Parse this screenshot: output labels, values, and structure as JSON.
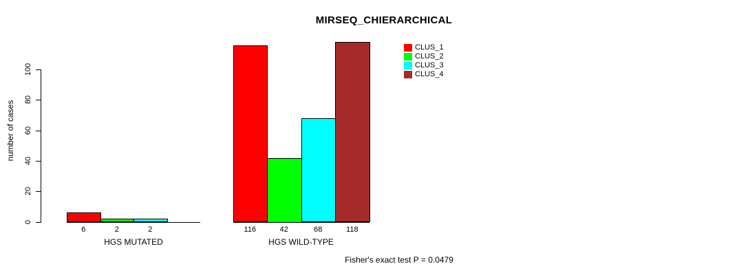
{
  "chart_data": {
    "type": "bar",
    "title": "MIRSEQ_CHIERARCHICAL",
    "ylabel": "number of cases",
    "xlabel": "",
    "ylim": [
      0,
      100
    ],
    "yticks": [
      "0",
      "20",
      "40",
      "60",
      "80",
      "100"
    ],
    "grid": false,
    "legend_position": "top-right",
    "categories": [
      "HGS MUTATED",
      "HGS WILD-TYPE"
    ],
    "series": [
      {
        "name": "CLUS_1",
        "color": "#ff0000",
        "values": [
          6,
          116
        ]
      },
      {
        "name": "CLUS_2",
        "color": "#00ff00",
        "values": [
          2,
          42
        ]
      },
      {
        "name": "CLUS_3",
        "color": "#00ffff",
        "values": [
          2,
          68
        ]
      },
      {
        "name": "CLUS_4",
        "color": "#a52a2a",
        "values": [
          0,
          118
        ]
      }
    ],
    "groups": [
      {
        "label": "HGS MUTATED",
        "values": [
          6,
          2,
          2,
          0
        ],
        "bar_labels": [
          "6",
          "2",
          "2",
          ""
        ]
      },
      {
        "label": "HGS WILD-TYPE",
        "values": [
          116,
          42,
          68,
          118
        ],
        "bar_labels": [
          "116",
          "42",
          "68",
          "118"
        ]
      }
    ],
    "annotation": "Fisher's exact test P = 0.0479"
  }
}
